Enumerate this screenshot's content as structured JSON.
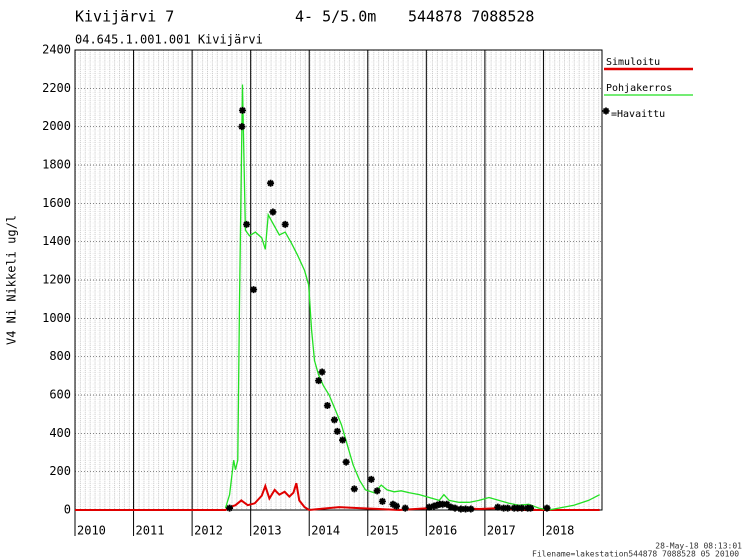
{
  "chart_data": {
    "type": "line",
    "title": "Kivijärvi 7",
    "depth": "4- 5/5.0m",
    "coordinates": "544878 7088528",
    "subtitle": "04.645.1.001.001 Kivijärvi",
    "y_label": "V4 Ni Nikkeli ug/l",
    "timestamp": "28-May-18 08:13:01",
    "filename": "Filename=lakestation544878 7088528 05 20100",
    "xlim": [
      2010,
      2019
    ],
    "xticks": [
      2010,
      2011,
      2012,
      2013,
      2014,
      2015,
      2016,
      2017,
      2018
    ],
    "ylim": [
      0,
      2400
    ],
    "yticks": [
      0,
      200,
      400,
      600,
      800,
      1000,
      1200,
      1400,
      1600,
      1800,
      2000,
      2200,
      2400
    ],
    "grid": true,
    "series": [
      {
        "name": "Simuloitu",
        "color": "#e00000",
        "style": "line",
        "x": [
          2010,
          2012.57,
          2012.64,
          2012.74,
          2012.84,
          2012.95,
          2013.07,
          2013.19,
          2013.25,
          2013.32,
          2013.41,
          2013.49,
          2013.58,
          2013.66,
          2013.73,
          2013.78,
          2013.83,
          2013.92,
          2014.0,
          2014.17,
          2014.51,
          2014.85,
          2015.19,
          2015.54,
          2016.05,
          2016.3,
          2016.56,
          2016.9,
          2017.24,
          2017.58,
          2018.96
        ],
        "values": [
          0,
          0,
          15,
          25,
          50,
          25,
          35,
          75,
          125,
          60,
          105,
          80,
          95,
          70,
          90,
          140,
          50,
          15,
          0,
          5,
          15,
          10,
          5,
          0,
          10,
          25,
          10,
          5,
          10,
          0,
          0
        ]
      },
      {
        "name": "Pohjakerros",
        "color": "#22e022",
        "style": "line",
        "x": [
          2012.57,
          2012.64,
          2012.71,
          2012.74,
          2012.78,
          2012.81,
          2012.86,
          2012.91,
          2012.98,
          2013.08,
          2013.19,
          2013.25,
          2013.3,
          2013.39,
          2013.49,
          2013.59,
          2013.7,
          2013.8,
          2013.92,
          2013.99,
          2014.04,
          2014.09,
          2014.16,
          2014.24,
          2014.34,
          2014.45,
          2014.55,
          2014.65,
          2014.75,
          2014.86,
          2014.96,
          2015.11,
          2015.23,
          2015.33,
          2015.45,
          2015.57,
          2015.71,
          2015.88,
          2016.05,
          2016.22,
          2016.3,
          2016.39,
          2016.56,
          2016.73,
          2016.9,
          2017.07,
          2017.24,
          2017.41,
          2017.58,
          2017.75,
          2017.92,
          2018.09,
          2018.26,
          2018.52,
          2018.77,
          2018.96
        ],
        "values": [
          10,
          80,
          260,
          210,
          260,
          1100,
          2220,
          1460,
          1430,
          1450,
          1420,
          1360,
          1540,
          1490,
          1435,
          1450,
          1390,
          1330,
          1250,
          1175,
          940,
          780,
          705,
          650,
          600,
          520,
          445,
          340,
          235,
          155,
          105,
          90,
          130,
          105,
          95,
          100,
          90,
          80,
          65,
          50,
          80,
          50,
          40,
          40,
          50,
          65,
          50,
          35,
          25,
          30,
          10,
          0,
          10,
          25,
          50,
          80
        ]
      },
      {
        "name": "=Havaittu",
        "color": "#000000",
        "style": "marker",
        "x": [
          2012.64,
          2012.85,
          2012.86,
          2012.93,
          2013.05,
          2013.34,
          2013.38,
          2013.59,
          2014.16,
          2014.22,
          2014.31,
          2014.43,
          2014.48,
          2014.57,
          2014.63,
          2014.77,
          2015.06,
          2015.16,
          2015.25,
          2015.43,
          2015.49,
          2015.64,
          2016.05,
          2016.13,
          2016.18,
          2016.23,
          2016.28,
          2016.35,
          2016.42,
          2016.49,
          2016.59,
          2016.67,
          2016.76,
          2017.22,
          2017.32,
          2017.39,
          2017.5,
          2017.56,
          2017.63,
          2017.73,
          2017.78,
          2018.06
        ],
        "values": [
          10,
          2000,
          2085,
          1490,
          1150,
          1705,
          1555,
          1490,
          675,
          720,
          545,
          470,
          410,
          365,
          250,
          110,
          160,
          100,
          45,
          30,
          20,
          10,
          15,
          20,
          25,
          30,
          30,
          30,
          15,
          10,
          5,
          5,
          5,
          15,
          10,
          10,
          10,
          10,
          10,
          10,
          10,
          10
        ]
      }
    ]
  }
}
